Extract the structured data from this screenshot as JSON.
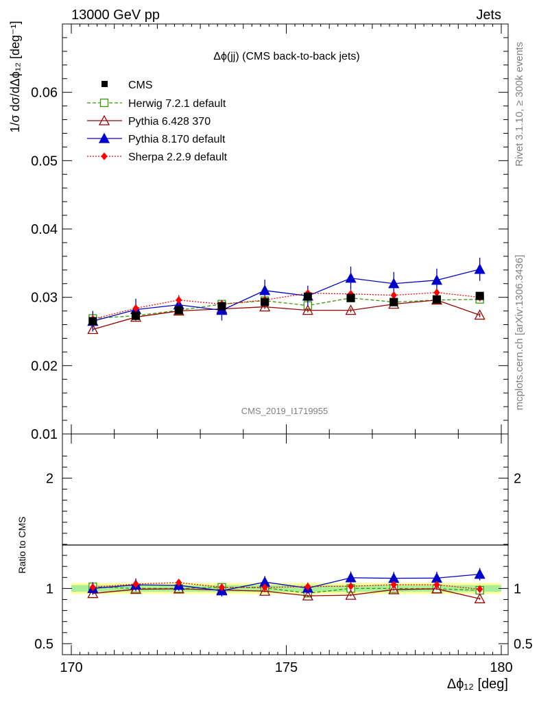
{
  "header": {
    "energy_label": "13000 GeV pp",
    "process_label": "Jets",
    "side_label_top": "Rivet 3.1.10, ≥ 300k events",
    "side_label_bottom": "mcplots.cern.ch [arXiv:1306.3436]",
    "watermark": "CMS_2019_I1719955"
  },
  "chart_data": {
    "type": "line",
    "title": "Δϕ(jj) (CMS back-to-back jets)",
    "xlabel": "Δϕ₁₂ [deg]",
    "ylabel": "1/σ dσ/dΔϕ₁₂ [deg⁻¹]",
    "ratio_ylabel": "Ratio to CMS",
    "xlim": [
      170,
      180
    ],
    "ylim": [
      0.01,
      0.07
    ],
    "ratio_ylim": [
      0.4,
      2.4
    ],
    "x_ticks": [
      "170",
      "175",
      "180"
    ],
    "y_ticks": [
      "0.01",
      "0.02",
      "0.03",
      "0.04",
      "0.05",
      "0.06"
    ],
    "ratio_ticks": [
      "0.5",
      "1",
      "2"
    ],
    "x": [
      170.5,
      171.5,
      172.5,
      173.5,
      174.5,
      175.5,
      176.5,
      177.5,
      178.5,
      179.5
    ],
    "data": {
      "name": "CMS",
      "values": [
        0.0265,
        0.0273,
        0.0281,
        0.0287,
        0.0293,
        0.0301,
        0.0299,
        0.0293,
        0.0297,
        0.0302
      ],
      "band_inner": [
        0.03,
        0.03,
        0.03,
        0.03,
        0.03,
        0.03,
        0.03,
        0.03,
        0.03,
        0.03
      ],
      "band_outer": [
        0.05,
        0.05,
        0.05,
        0.05,
        0.05,
        0.05,
        0.05,
        0.05,
        0.05,
        0.05
      ]
    },
    "series": [
      {
        "name": "Herwig 7.2.1 default",
        "color": "#339900",
        "marker": "open-square",
        "dash": "5,3",
        "values": [
          0.0269,
          0.0273,
          0.0281,
          0.029,
          0.0295,
          0.0288,
          0.0299,
          0.0293,
          0.0296,
          0.0297
        ],
        "errors": [
          0.0004,
          0.0004,
          0.0004,
          0.0004,
          0.0004,
          0.0004,
          0.0004,
          0.0004,
          0.0004,
          0.0004
        ]
      },
      {
        "name": "Pythia 6.428 370",
        "color": "#990000",
        "marker": "open-triangle",
        "dash": "",
        "values": [
          0.0253,
          0.0271,
          0.028,
          0.0283,
          0.0286,
          0.0281,
          0.0281,
          0.029,
          0.0296,
          0.0274
        ],
        "errors": [
          0.0003,
          0.0003,
          0.0003,
          0.0003,
          0.0003,
          0.0003,
          0.0003,
          0.0003,
          0.0003,
          0.0003
        ]
      },
      {
        "name": "Pythia 8.170 default",
        "color": "#0000cc",
        "marker": "filled-triangle",
        "dash": "",
        "values": [
          0.0265,
          0.0282,
          0.0289,
          0.0281,
          0.031,
          0.0302,
          0.0328,
          0.032,
          0.0325,
          0.0341
        ],
        "errors": [
          0.0015,
          0.0016,
          0.0014,
          0.0015,
          0.0016,
          0.0015,
          0.0017,
          0.0017,
          0.0017,
          0.0017
        ]
      },
      {
        "name": "Sherpa 2.2.9 default",
        "color": "#ff0000",
        "marker": "filled-diamond",
        "dash": "2,2",
        "values": [
          0.0268,
          0.0284,
          0.0296,
          0.029,
          0.0296,
          0.0306,
          0.0305,
          0.0303,
          0.0307,
          0.03
        ],
        "errors": [
          0.0006,
          0.0006,
          0.0007,
          0.0006,
          0.0006,
          0.0006,
          0.0006,
          0.0006,
          0.0006,
          0.0006
        ]
      }
    ]
  }
}
